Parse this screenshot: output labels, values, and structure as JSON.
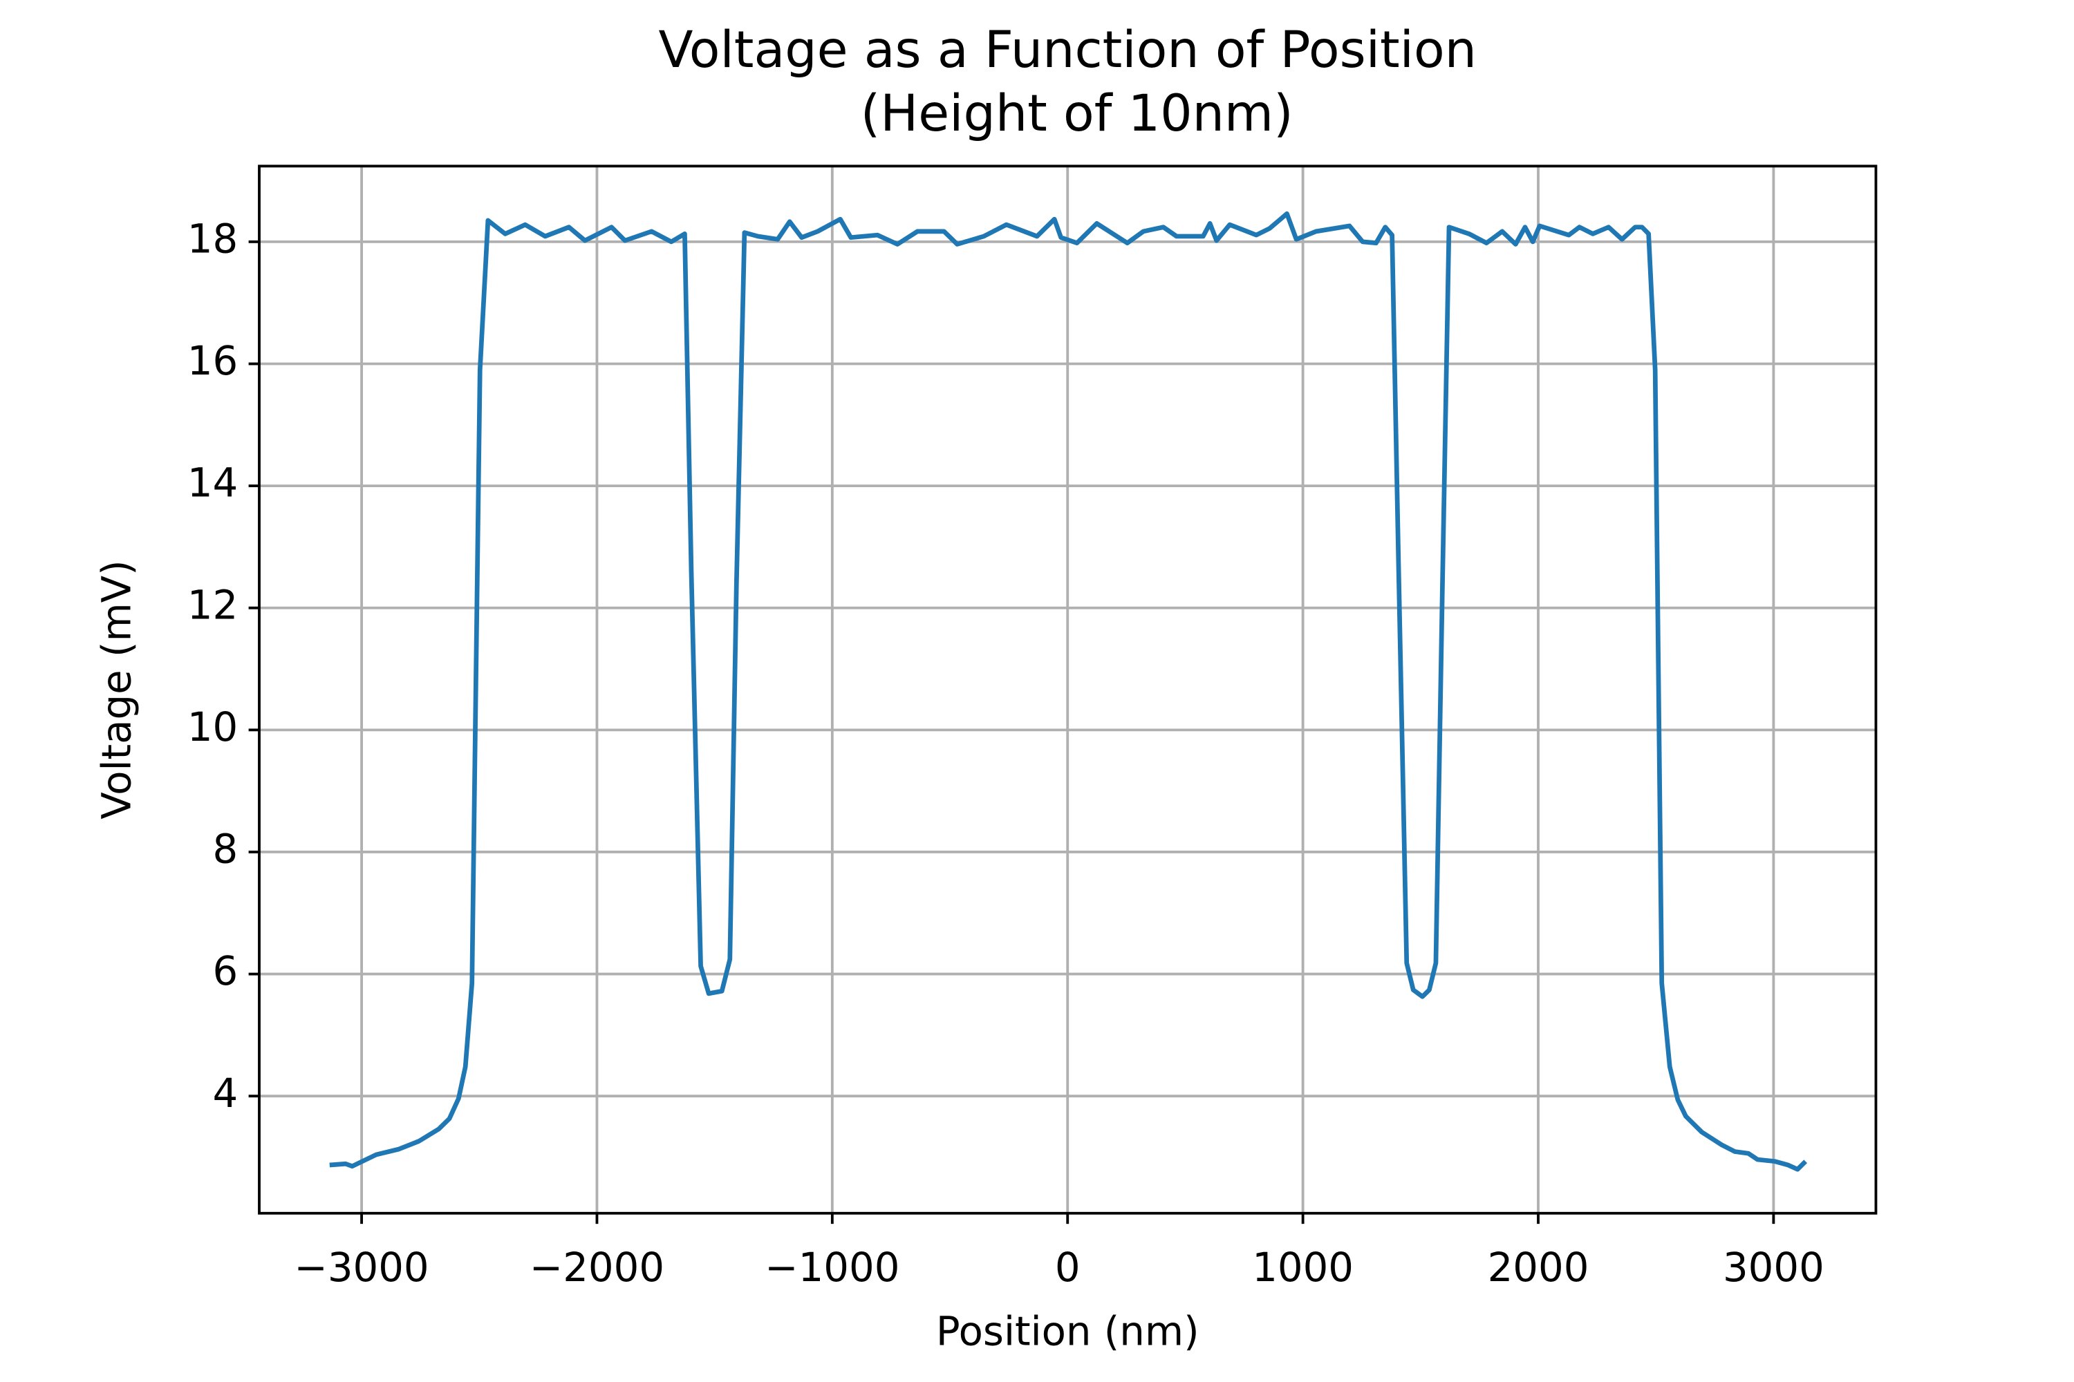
{
  "chart_data": {
    "type": "line",
    "title": "Voltage as a Function of Position",
    "subtitle": "(Height of 10nm)",
    "x_label": "Position (nm)",
    "y_label": "Voltage (mV)",
    "xlim": [
      -3435,
      3435
    ],
    "ylim": [
      2.08,
      19.24
    ],
    "xticks": [
      {
        "value": -3000,
        "label": "−3000"
      },
      {
        "value": -2000,
        "label": "−2000"
      },
      {
        "value": -1000,
        "label": "−1000"
      },
      0,
      1000,
      2000,
      3000
    ],
    "yticks": [
      4,
      6,
      8,
      10,
      12,
      14,
      16,
      18
    ],
    "grid": true,
    "x": [
      -3136,
      -3068,
      -3040,
      -2938,
      -2842,
      -2757,
      -2672,
      -2627,
      -2588,
      -2559,
      -2531,
      -2497,
      -2463,
      -2390,
      -2305,
      -2220,
      -2119,
      -2051,
      -1938,
      -1881,
      -1768,
      -1684,
      -1627,
      -1599,
      -1559,
      -1525,
      -1469,
      -1435,
      -1407,
      -1373,
      -1316,
      -1232,
      -1181,
      -1130,
      -1062,
      -966,
      -921,
      -808,
      -723,
      -638,
      -525,
      -469,
      -356,
      -260,
      -130,
      -56,
      -28,
      40,
      124,
      254,
      322,
      407,
      463,
      576,
      605,
      633,
      689,
      802,
      859,
      932,
      972,
      1056,
      1198,
      1254,
      1311,
      1350,
      1379,
      1407,
      1441,
      1469,
      1508,
      1537,
      1565,
      1593,
      1621,
      1706,
      1780,
      1847,
      1904,
      1944,
      1977,
      2006,
      2130,
      2175,
      2232,
      2299,
      2356,
      2412,
      2441,
      2469,
      2497,
      2525,
      2559,
      2593,
      2627,
      2695,
      2780,
      2836,
      2893,
      2932,
      3006,
      3062,
      3102,
      3136
    ],
    "series": [
      {
        "name": "Voltage",
        "color": "#1f77b4",
        "values": [
          2.87,
          2.89,
          2.85,
          3.04,
          3.13,
          3.26,
          3.46,
          3.63,
          3.96,
          4.48,
          5.85,
          15.9,
          18.35,
          18.13,
          18.28,
          18.09,
          18.24,
          18.02,
          18.24,
          18.02,
          18.17,
          18.0,
          18.13,
          12.6,
          6.13,
          5.68,
          5.72,
          6.24,
          12.4,
          18.15,
          18.09,
          18.04,
          18.33,
          18.07,
          18.17,
          18.37,
          18.07,
          18.11,
          17.96,
          18.17,
          18.17,
          17.96,
          18.09,
          18.28,
          18.09,
          18.37,
          18.07,
          17.98,
          18.3,
          17.98,
          18.17,
          18.24,
          18.09,
          18.09,
          18.3,
          18.02,
          18.28,
          18.11,
          18.22,
          18.46,
          18.04,
          18.17,
          18.26,
          18.0,
          17.98,
          18.24,
          18.11,
          12.6,
          6.18,
          5.74,
          5.63,
          5.74,
          6.18,
          12.38,
          18.24,
          18.13,
          17.98,
          18.17,
          17.96,
          18.24,
          18.0,
          18.26,
          18.11,
          18.24,
          18.13,
          18.24,
          18.04,
          18.24,
          18.24,
          18.13,
          15.9,
          5.85,
          4.48,
          3.94,
          3.67,
          3.41,
          3.2,
          3.09,
          3.06,
          2.96,
          2.93,
          2.87,
          2.8,
          2.93
        ]
      }
    ]
  }
}
